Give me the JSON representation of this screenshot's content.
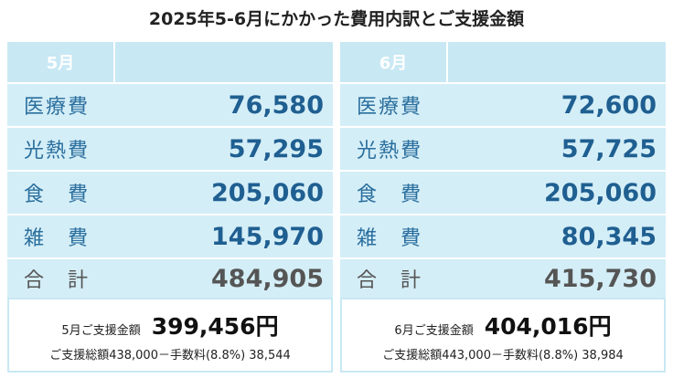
{
  "header": {
    "title": "2025年5-6月にかかった費用内訳とご支援金額"
  },
  "panels": [
    {
      "month": "5月",
      "rows": [
        {
          "label": "医療費",
          "amount": "76,580"
        },
        {
          "label": "光熱費",
          "amount": "57,295"
        },
        {
          "label": "食　費",
          "amount": "205,060"
        },
        {
          "label": "雑　費",
          "amount": "145,970"
        },
        {
          "label": "合　計",
          "amount": "484,905"
        }
      ],
      "support": {
        "label": "5月ご支援金額",
        "amount": "399,456円",
        "detail": "ご支援総額438,000－手数料(8.8%) 38,544"
      }
    },
    {
      "month": "6月",
      "rows": [
        {
          "label": "医療費",
          "amount": "72,600"
        },
        {
          "label": "光熱費",
          "amount": "57,725"
        },
        {
          "label": "食　費",
          "amount": "205,060"
        },
        {
          "label": "雑　費",
          "amount": "80,345"
        },
        {
          "label": "合　計",
          "amount": "415,730"
        }
      ],
      "support": {
        "label": "6月ご支援金額",
        "amount": "404,016円",
        "detail": "ご支援総額443,000－手数料(8.8%) 38,984"
      }
    }
  ]
}
